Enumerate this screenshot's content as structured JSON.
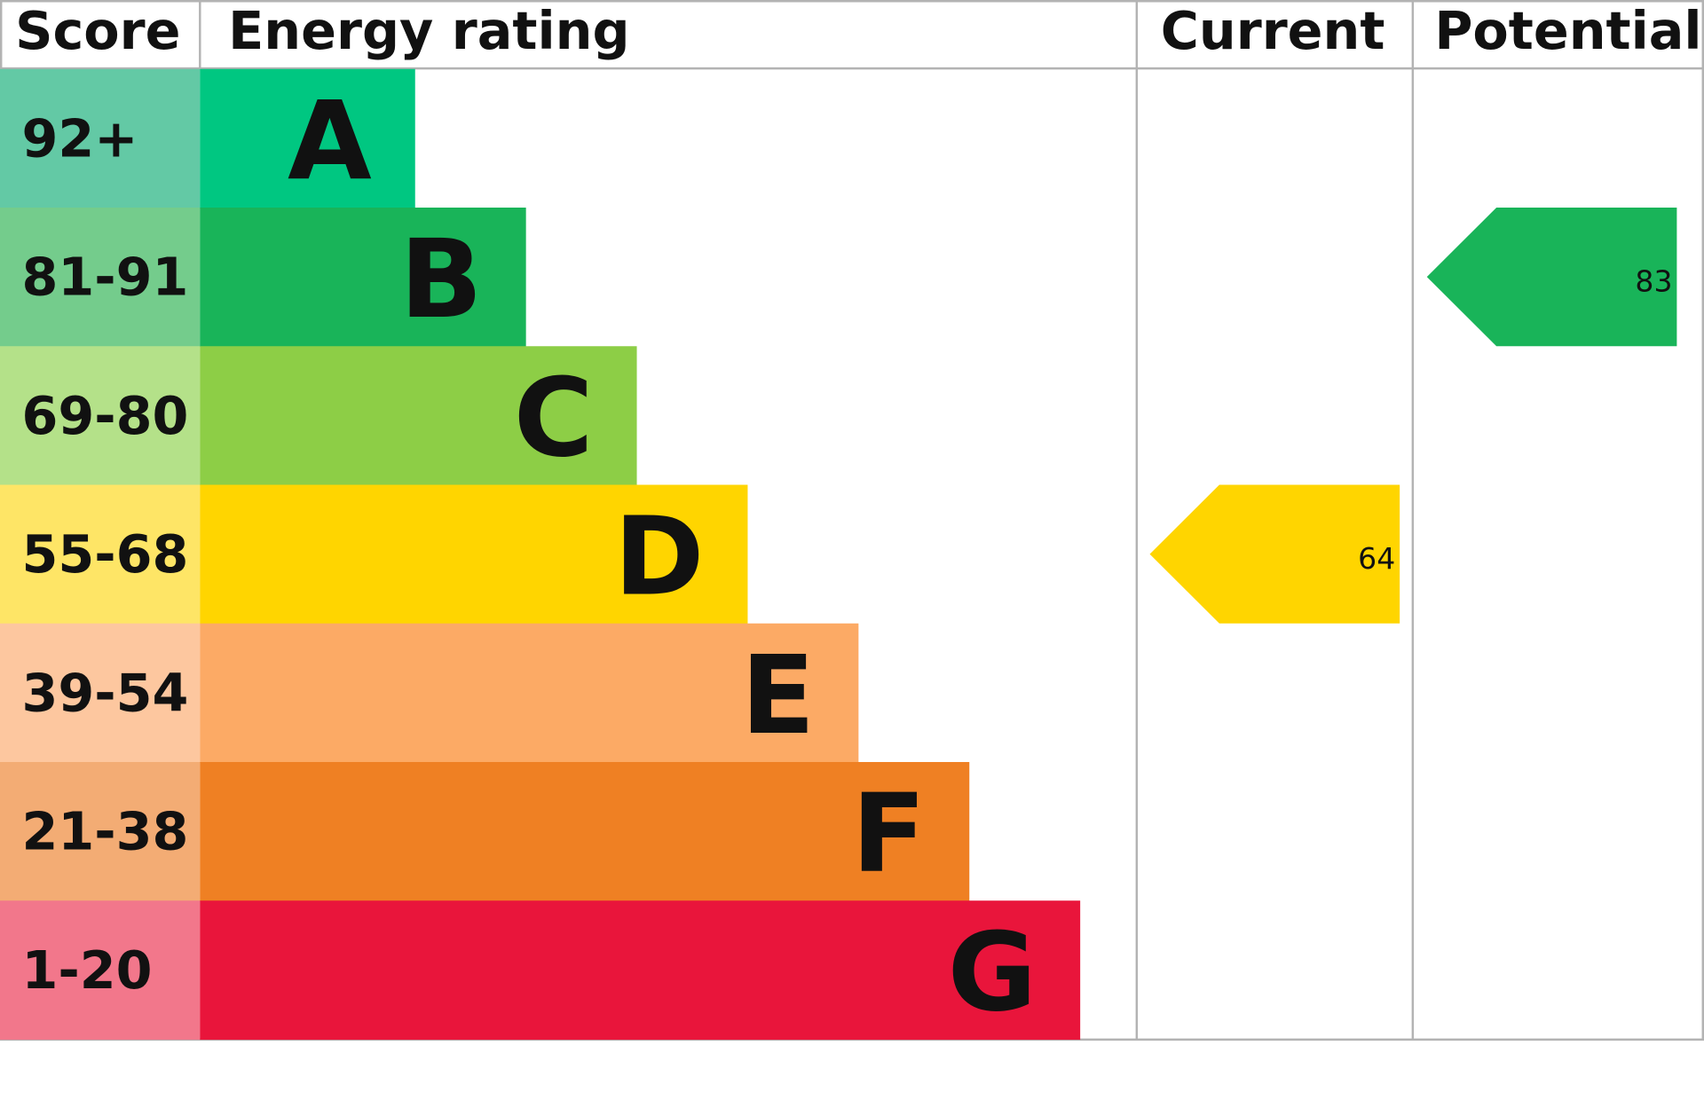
{
  "header": {
    "score": "Score",
    "energy_rating": "Energy rating",
    "current": "Current",
    "potential": "Potential"
  },
  "rows": [
    {
      "score": "92+",
      "rating": "A",
      "score_color": "#63c9a5",
      "color": "#00c781"
    },
    {
      "score": "81-91",
      "rating": "B",
      "score_color": "#74cc8c",
      "color": "#19b459"
    },
    {
      "score": "69-80",
      "rating": "C",
      "score_color": "#b4e189",
      "color": "#8dce46"
    },
    {
      "score": "55-68",
      "rating": "D",
      "score_color": "#fee566",
      "color": "#ffd500"
    },
    {
      "score": "39-54",
      "rating": "E",
      "score_color": "#fdc79f",
      "color": "#fcaa65"
    },
    {
      "score": "21-38",
      "rating": "F",
      "score_color": "#f3ac74",
      "color": "#ef8023"
    },
    {
      "score": "1-20",
      "rating": "G",
      "score_color": "#f2778b",
      "color": "#e9153b"
    }
  ],
  "current": {
    "value": 64
  },
  "potential": {
    "value": 83
  }
}
